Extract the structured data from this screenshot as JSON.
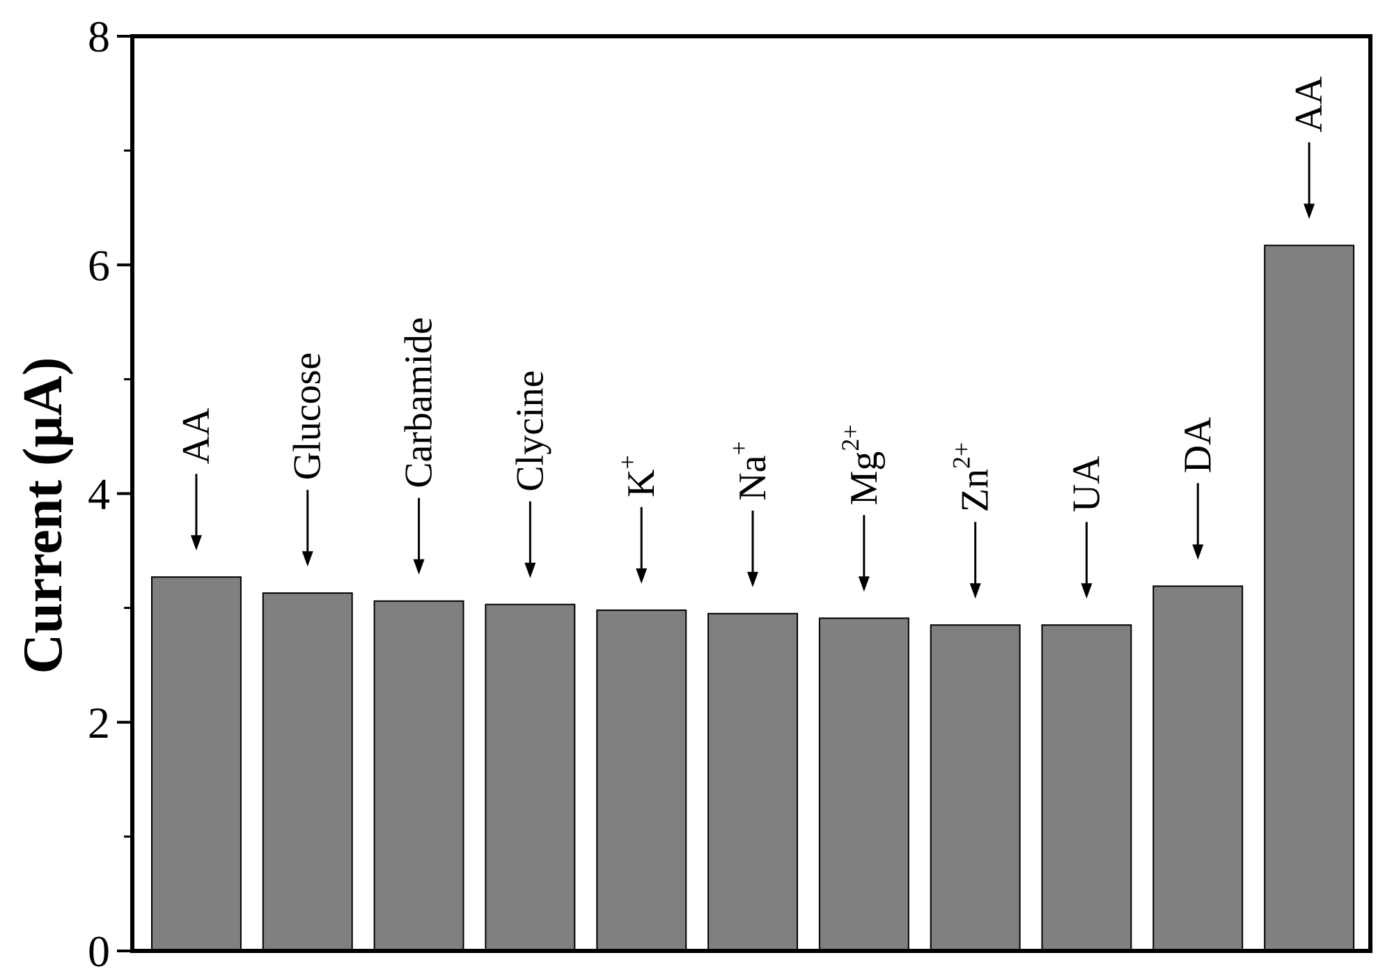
{
  "chart_data": {
    "type": "bar",
    "ylabel": "Current (μA)",
    "xlabel": "",
    "ylim": [
      0,
      8
    ],
    "yticks": [
      0,
      2,
      4,
      6,
      8
    ],
    "grid": false,
    "legend": "none",
    "bar_color": "#808080",
    "categories": [
      "AA",
      "Glucose",
      "Carbamide",
      "Clycine",
      "K+",
      "Na+",
      "Mg2+",
      "Zn2+",
      "UA",
      "DA",
      "AA"
    ],
    "values": [
      3.27,
      3.13,
      3.06,
      3.03,
      2.98,
      2.95,
      2.91,
      2.85,
      2.85,
      3.19,
      6.17
    ],
    "labels": [
      {
        "base": "AA",
        "sup": ""
      },
      {
        "base": "Glucose",
        "sup": ""
      },
      {
        "base": "Carbamide",
        "sup": ""
      },
      {
        "base": "Clycine",
        "sup": ""
      },
      {
        "base": "K",
        "sup": "+"
      },
      {
        "base": "Na",
        "sup": "+"
      },
      {
        "base": "Mg",
        "sup": "2+"
      },
      {
        "base": "Zn",
        "sup": "2+"
      },
      {
        "base": "UA",
        "sup": ""
      },
      {
        "base": "DA",
        "sup": ""
      },
      {
        "base": "AA",
        "sup": ""
      }
    ]
  }
}
